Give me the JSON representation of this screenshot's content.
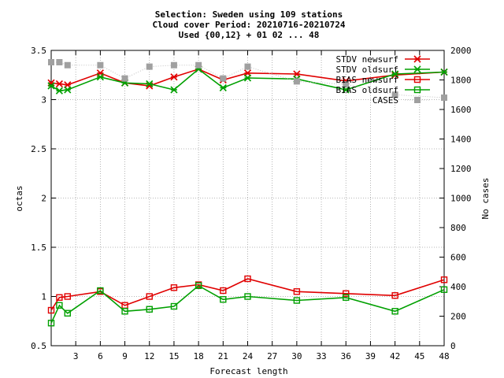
{
  "chart_data": {
    "type": "line",
    "title_lines": [
      "Selection: Sweden using   109 stations",
      "Cloud cover   Period: 20210716-20210724",
      "Used {00,12} + 01 02 ... 48"
    ],
    "xlabel": "Forecast length",
    "ylabel": "octas",
    "y2label": "No cases",
    "xlim": [
      0,
      48
    ],
    "ylim": [
      0.5,
      3.5
    ],
    "y2lim": [
      0,
      2000
    ],
    "xticks": [
      3,
      6,
      9,
      12,
      15,
      18,
      21,
      24,
      27,
      30,
      33,
      36,
      39,
      42,
      45,
      48
    ],
    "yticks": [
      0.5,
      1,
      1.5,
      2,
      2.5,
      3,
      3.5
    ],
    "yticklabels": [
      "0.5",
      "1",
      "1.5",
      "2",
      "2.5",
      "3",
      "3.5"
    ],
    "y2ticks": [
      0,
      200,
      400,
      600,
      800,
      1000,
      1200,
      1400,
      1600,
      1800,
      2000
    ],
    "grid": true,
    "legend_position": "top-right",
    "series": [
      {
        "name": "STDV newsurf",
        "color": "#e00000",
        "marker": "x",
        "axis": "y1",
        "x": [
          0,
          1,
          2,
          6,
          9,
          12,
          15,
          18,
          21,
          24,
          30,
          36,
          42,
          48
        ],
        "y": [
          3.17,
          3.16,
          3.15,
          3.27,
          3.17,
          3.14,
          3.23,
          3.31,
          3.2,
          3.27,
          3.26,
          3.19,
          3.25,
          3.28
        ]
      },
      {
        "name": "STDV oldsurf",
        "color": "#00a000",
        "marker": "x",
        "axis": "y1",
        "x": [
          0,
          1,
          2,
          6,
          9,
          12,
          15,
          18,
          21,
          24,
          30,
          36,
          42,
          48
        ],
        "y": [
          3.14,
          3.09,
          3.1,
          3.23,
          3.17,
          3.16,
          3.1,
          3.31,
          3.12,
          3.22,
          3.21,
          3.1,
          3.26,
          3.28
        ]
      },
      {
        "name": "BIAS newsurf",
        "color": "#e00000",
        "marker": "square",
        "axis": "y1",
        "x": [
          0,
          1,
          2,
          6,
          9,
          12,
          15,
          18,
          21,
          24,
          30,
          36,
          42,
          48
        ],
        "y": [
          0.86,
          0.99,
          1.0,
          1.05,
          0.91,
          1.0,
          1.09,
          1.12,
          1.06,
          1.18,
          1.05,
          1.03,
          1.01,
          1.17
        ]
      },
      {
        "name": "BIAS oldsurf",
        "color": "#00a000",
        "marker": "square",
        "axis": "y1",
        "x": [
          0,
          1,
          2,
          6,
          9,
          12,
          15,
          18,
          21,
          24,
          30,
          36,
          42,
          48
        ],
        "y": [
          0.73,
          0.91,
          0.83,
          1.06,
          0.85,
          0.87,
          0.9,
          1.11,
          0.97,
          1.0,
          0.96,
          0.99,
          0.85,
          1.07
        ]
      },
      {
        "name": "CASES",
        "color": "#a0a0a0",
        "marker": "filled-square",
        "axis": "y2",
        "x": [
          0,
          1,
          2,
          6,
          9,
          12,
          15,
          18,
          21,
          24,
          30,
          36,
          42,
          48
        ],
        "y": [
          1920,
          1920,
          1900,
          1900,
          1810,
          1890,
          1900,
          1900,
          1810,
          1890,
          1790,
          1770,
          1700,
          1680
        ]
      }
    ]
  }
}
